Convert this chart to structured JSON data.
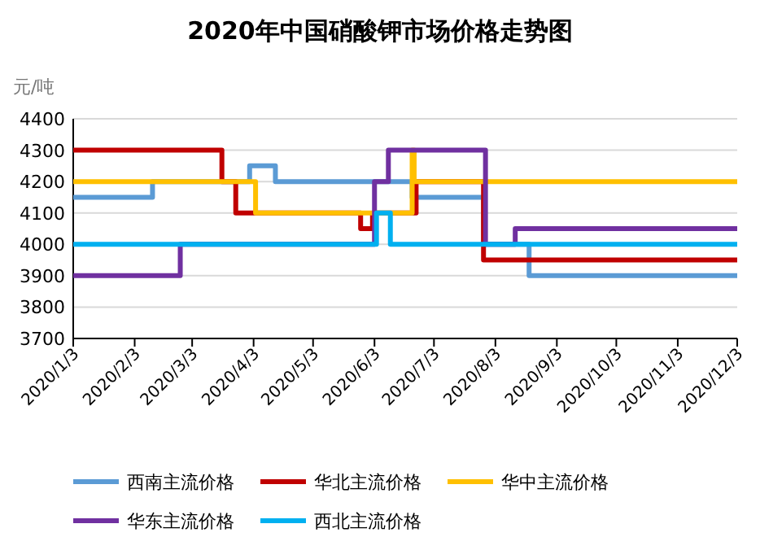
{
  "chart_data": {
    "type": "step",
    "title": "2020年中国硝酸钾市场价格走势图",
    "ylabel": "元/吨",
    "xlim": [
      "2020-01-03",
      "2020-12-03"
    ],
    "ylim": [
      3700,
      4400
    ],
    "yticks": [
      3700,
      3800,
      3900,
      4000,
      4100,
      4200,
      4300,
      4400
    ],
    "xticks": [
      {
        "value": "2020-01-03",
        "label": "2020/1/3"
      },
      {
        "value": "2020-02-03",
        "label": "2020/2/3"
      },
      {
        "value": "2020-03-03",
        "label": "2020/3/3"
      },
      {
        "value": "2020-04-03",
        "label": "2020/4/3"
      },
      {
        "value": "2020-05-03",
        "label": "2020/5/3"
      },
      {
        "value": "2020-06-03",
        "label": "2020/6/3"
      },
      {
        "value": "2020-07-03",
        "label": "2020/7/3"
      },
      {
        "value": "2020-08-03",
        "label": "2020/8/3"
      },
      {
        "value": "2020-09-03",
        "label": "2020/9/3"
      },
      {
        "value": "2020-10-03",
        "label": "2020/10/3"
      },
      {
        "value": "2020-11-03",
        "label": "2020/11/3"
      },
      {
        "value": "2020-12-03",
        "label": "2020/12/3"
      }
    ],
    "grid": "y",
    "legend": "bottom",
    "series": [
      {
        "name": "西南主流价格",
        "color": "#5b9bd5",
        "x": [
          "2020-01-03",
          "2020-02-12",
          "2020-04-01",
          "2020-04-14",
          "2020-06-22",
          "2020-07-28",
          "2020-08-20",
          "2020-12-03"
        ],
        "values": [
          4150,
          4200,
          4250,
          4200,
          4150,
          4000,
          3900,
          3900
        ]
      },
      {
        "name": "华北主流价格",
        "color": "#c00000",
        "x": [
          "2020-01-03",
          "2020-03-18",
          "2020-03-25",
          "2020-05-27",
          "2020-06-02",
          "2020-06-24",
          "2020-07-28",
          "2020-12-03"
        ],
        "values": [
          4300,
          4200,
          4100,
          4050,
          4100,
          4200,
          3950,
          3950
        ]
      },
      {
        "name": "华中主流价格",
        "color": "#ffc000",
        "x": [
          "2020-01-03",
          "2020-04-04",
          "2020-06-22",
          "2020-06-23",
          "2020-12-03"
        ],
        "values": [
          4200,
          4100,
          4300,
          4200,
          4200
        ]
      },
      {
        "name": "华东主流价格",
        "color": "#7030a0",
        "x": [
          "2020-01-03",
          "2020-02-26",
          "2020-06-03",
          "2020-06-10",
          "2020-07-29",
          "2020-08-13",
          "2020-12-03"
        ],
        "values": [
          3900,
          4000,
          4200,
          4300,
          4000,
          4050,
          4050
        ]
      },
      {
        "name": "西北主流价格",
        "color": "#00b0f0",
        "x": [
          "2020-01-03",
          "2020-06-04",
          "2020-06-11",
          "2020-12-03"
        ],
        "values": [
          4000,
          4100,
          4000,
          4000
        ]
      }
    ]
  }
}
